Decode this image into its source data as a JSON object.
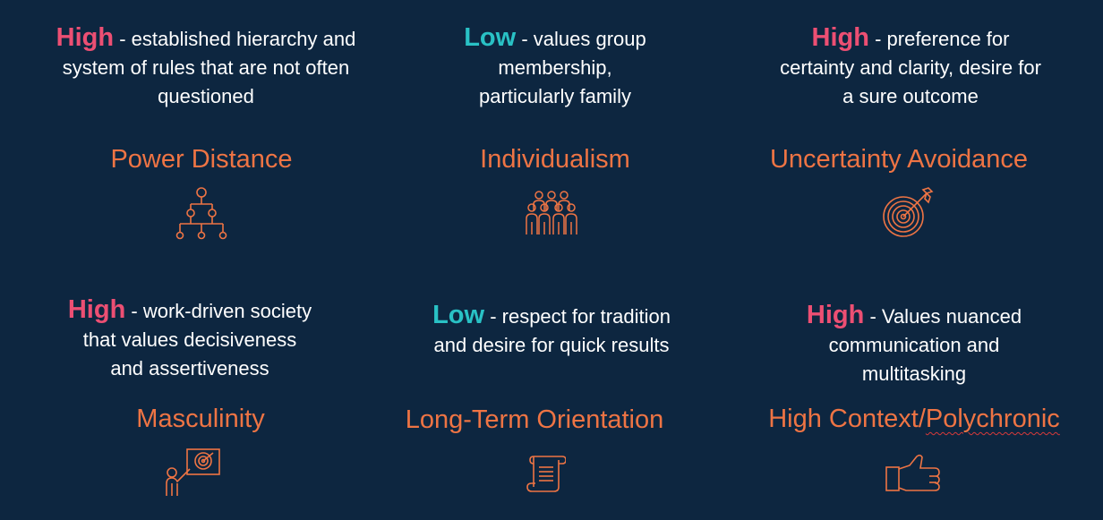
{
  "dimensions": [
    {
      "level": "High",
      "level_kind": "high",
      "desc1": "- established hierarchy and",
      "desc2": "system of rules that are not often",
      "desc3": "questioned",
      "title": "Power Distance",
      "icon": "hierarchy-icon"
    },
    {
      "level": "Low",
      "level_kind": "low",
      "desc1": "- values group",
      "desc2": "membership,",
      "desc3": "particularly family",
      "title": "Individualism",
      "icon": "group-people-icon"
    },
    {
      "level": "High",
      "level_kind": "high",
      "desc1": "- preference for",
      "desc2": "certainty and clarity, desire for",
      "desc3": "a sure outcome",
      "title": "Uncertainty Avoidance",
      "icon": "target-arrow-icon"
    },
    {
      "level": "High",
      "level_kind": "high",
      "desc1": "- work-driven society",
      "desc2": "that values decisiveness",
      "desc3": "and assertiveness",
      "title": "Masculinity",
      "icon": "presenter-target-icon"
    },
    {
      "level": "Low",
      "level_kind": "low",
      "desc1": "- respect for tradition",
      "desc2": "and desire for quick results",
      "desc3": "",
      "title": "Long-Term Orientation",
      "icon": "scroll-icon"
    },
    {
      "level": "High",
      "level_kind": "high",
      "desc1": "- Values nuanced",
      "desc2": "communication and",
      "desc3": "multitasking",
      "title_a": "High Context/",
      "title_b": "Polychronic",
      "icon": "thumbs-up-icon"
    }
  ],
  "colors": {
    "background": "#0d2640",
    "high": "#ec4f73",
    "low": "#29c1c5",
    "title": "#ee7444",
    "text": "#ffffff"
  }
}
